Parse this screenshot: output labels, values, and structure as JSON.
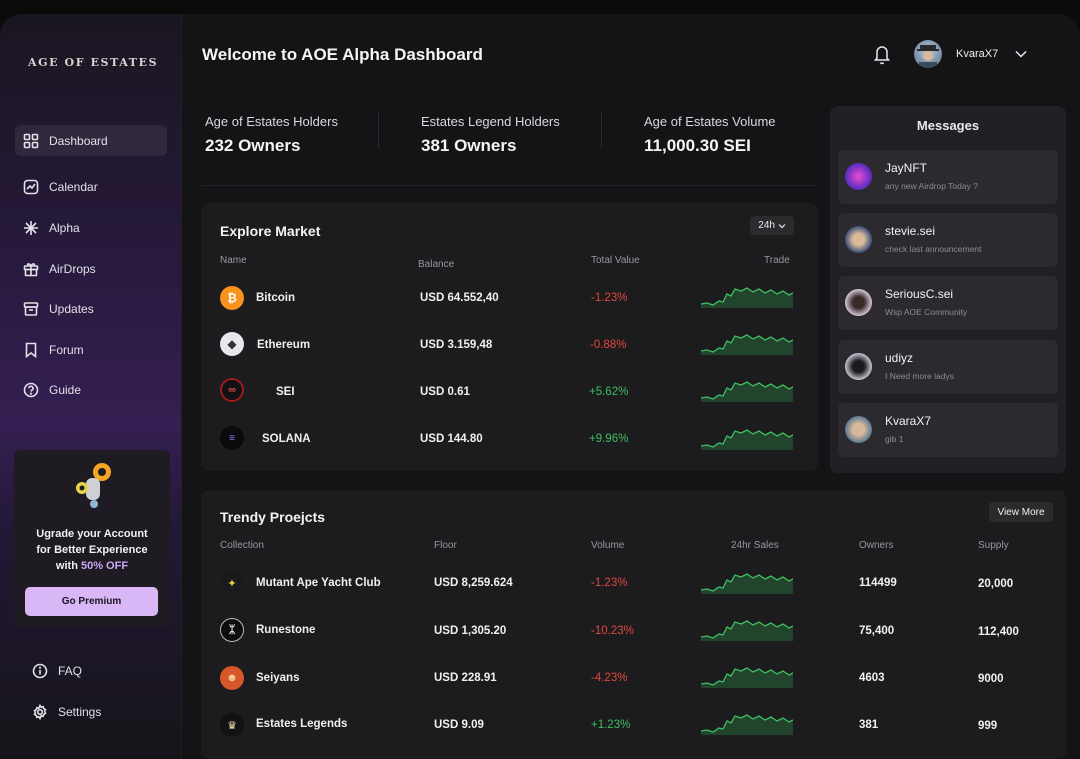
{
  "sidebar": {
    "logo": "AGE OF ESTATES",
    "nav": [
      {
        "label": "Dashboard",
        "icon": "grid-icon"
      },
      {
        "label": "Calendar",
        "icon": "chart-icon"
      },
      {
        "label": "Alpha",
        "icon": "sparkle-icon"
      },
      {
        "label": "AirDrops",
        "icon": "gift-icon"
      },
      {
        "label": "Updates",
        "icon": "archive-icon"
      },
      {
        "label": "Forum",
        "icon": "bookmark-icon"
      },
      {
        "label": "Guide",
        "icon": "help-icon"
      }
    ],
    "upgrade": {
      "line1": "Ugrade your Account",
      "line2": "for Better Experience",
      "line3_prefix": "with ",
      "line3_highlight": "50% OFF",
      "button": "Go Premium"
    },
    "bottom": [
      {
        "label": "FAQ",
        "icon": "info-icon"
      },
      {
        "label": "Settings",
        "icon": "gear-icon"
      }
    ]
  },
  "header": {
    "title": "Welcome to AOE Alpha Dashboard",
    "username": "KvaraX7"
  },
  "stats": [
    {
      "label": "Age of Estates Holders",
      "value": "232 Owners"
    },
    {
      "label": "Estates Legend Holders",
      "value": "381 Owners"
    },
    {
      "label": "Age of Estates Volume",
      "value": "11,000.30 SEI"
    }
  ],
  "market": {
    "title": "Explore Market",
    "range": "24h",
    "headers": [
      "Name",
      "Balance",
      "Total Value",
      "Trade"
    ],
    "rows": [
      {
        "name": "Bitcoin",
        "balance": "USD 64.552,40",
        "change": "-1.23%",
        "dir": "neg",
        "color": "#f7931a"
      },
      {
        "name": "Ethereum",
        "balance": "USD 3.159,48",
        "change": "-0.88%",
        "dir": "neg",
        "color": "#e8e8ec"
      },
      {
        "name": "SEI",
        "balance": "USD 0.61",
        "change": "+5.62%",
        "dir": "pos",
        "color": "#9b1c1c"
      },
      {
        "name": "SOLANA",
        "balance": "USD 144.80",
        "change": "+9.96%",
        "dir": "pos",
        "color": "#0e0e10"
      }
    ]
  },
  "projects": {
    "title": "Trendy Proejcts",
    "view_more": "View More",
    "headers": [
      "Collection",
      "Floor",
      "Volume",
      "24hr Sales",
      "Owners",
      "Supply"
    ],
    "rows": [
      {
        "name": "Mutant Ape Yacht Club",
        "floor": "USD 8,259.624",
        "volume": "-1.23%",
        "dir": "neg",
        "owners": "114499",
        "supply": "20,000",
        "color": "#1a1a1c"
      },
      {
        "name": "Runestone",
        "floor": "USD 1,305.20",
        "volume": "-10.23%",
        "dir": "neg",
        "owners": "75,400",
        "supply": "112,400",
        "color": "#0d0d0f"
      },
      {
        "name": "Seiyans",
        "floor": "USD 228.91",
        "volume": "-4.23%",
        "dir": "neg",
        "owners": "4603",
        "supply": "9000",
        "color": "#d8572a"
      },
      {
        "name": "Estates Legends",
        "floor": "USD 9.09",
        "volume": "+1.23%",
        "dir": "pos",
        "owners": "381",
        "supply": "999",
        "color": "#121214"
      }
    ]
  },
  "messages": {
    "title": "Messages",
    "items": [
      {
        "name": "JayNFT",
        "text": "any new Airdrop Today ?",
        "color": "#6a2fc4"
      },
      {
        "name": "stevie.sei",
        "text": "check last announcement",
        "color": "#3a4f78"
      },
      {
        "name": "SeriousC.sei",
        "text": "Wsp AOE Community",
        "color": "#d6c7d8"
      },
      {
        "name": "udiyz",
        "text": "I Need more ladys",
        "color": "#c9c5d2"
      },
      {
        "name": "KvaraX7",
        "text": "gib 1",
        "color": "#5a7894"
      }
    ]
  }
}
